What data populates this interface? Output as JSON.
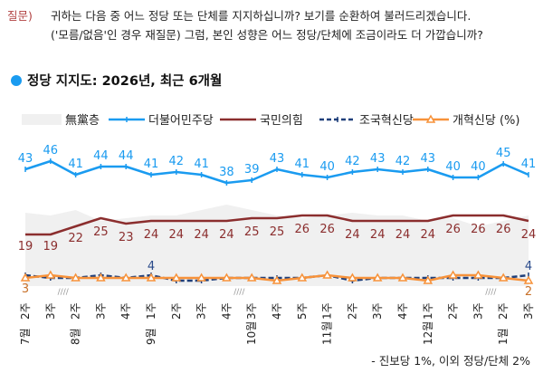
{
  "question": {
    "tag": "질문)",
    "line1": "귀하는 다음 중 어느 정당 또는 단체를 지지하십니까? 보기를 순환하여 불러드리겠습니다.",
    "line2": "('모름/없음'인 경우 재질문) 그럼, 본인 성향은 어느 정당/단체에 조금이라도 더 가깝습니까?"
  },
  "footnote": "- 진보당 1%, 이외 정당/단체 2%",
  "chart_data": {
    "type": "line",
    "title": "정당 지지도: 2026년, 최근 6개월",
    "unit": "%",
    "categories": [
      {
        "week": "2주",
        "month": "7월"
      },
      {
        "week": "3주",
        "month": ""
      },
      {
        "week": "2주",
        "month": "8월"
      },
      {
        "week": "3주",
        "month": ""
      },
      {
        "week": "4주",
        "month": ""
      },
      {
        "week": "1주",
        "month": "9월"
      },
      {
        "week": "2주",
        "month": ""
      },
      {
        "week": "3주",
        "month": ""
      },
      {
        "week": "4주",
        "month": ""
      },
      {
        "week": "3주",
        "month": "10월"
      },
      {
        "week": "4주",
        "month": ""
      },
      {
        "week": "5주",
        "month": ""
      },
      {
        "week": "1주",
        "month": "11월"
      },
      {
        "week": "2주",
        "month": ""
      },
      {
        "week": "3주",
        "month": ""
      },
      {
        "week": "4주",
        "month": ""
      },
      {
        "week": "1주",
        "month": "12월"
      },
      {
        "week": "2주",
        "month": ""
      },
      {
        "week": "3주",
        "month": ""
      },
      {
        "week": "2주",
        "month": "1월"
      },
      {
        "week": "3주",
        "month": ""
      }
    ],
    "axis_breaks_after_index": [
      1,
      8,
      18
    ],
    "axis_break_mark": "////",
    "ylim": [
      0,
      50
    ],
    "grid": false,
    "legend_position": "top",
    "series": [
      {
        "name": "無黨층",
        "type": "area",
        "color": "#f0f0f0",
        "values": [
          27,
          26,
          28,
          24,
          25,
          26,
          26,
          28,
          30,
          28,
          26,
          25,
          26,
          27,
          26,
          26,
          24,
          25,
          22,
          24,
          26
        ],
        "labels": "none"
      },
      {
        "name": "더불어민주당",
        "type": "line",
        "color": "#1a9bf0",
        "marker": "plus",
        "label_color": "#1a9bf0",
        "values": [
          43,
          46,
          41,
          44,
          44,
          41,
          42,
          41,
          38,
          39,
          43,
          41,
          40,
          42,
          43,
          42,
          43,
          40,
          40,
          45,
          41
        ],
        "labels": "all"
      },
      {
        "name": "국민의힘",
        "type": "line",
        "color": "#8b2e2e",
        "marker": "none",
        "label_color": "#8b2e2e",
        "values": [
          19,
          19,
          22,
          25,
          23,
          24,
          24,
          24,
          24,
          25,
          25,
          26,
          26,
          24,
          24,
          24,
          24,
          26,
          26,
          26,
          24
        ],
        "labels": "all"
      },
      {
        "name": "조국혁신당",
        "type": "dashed",
        "color": "#1f3f7a",
        "marker": "plus",
        "label_color": "#2a4a8a",
        "values": [
          4,
          3,
          3,
          4,
          3,
          4,
          2,
          2,
          3,
          3,
          3,
          3,
          4,
          2,
          3,
          3,
          3,
          3,
          3,
          3,
          4
        ],
        "labels": [
          5,
          20
        ]
      },
      {
        "name": "개혁신당",
        "type": "line",
        "color": "#f7923a",
        "marker": "triangle",
        "label_color": "#c8712a",
        "values": [
          3,
          4,
          3,
          3,
          3,
          3,
          3,
          3,
          3,
          3,
          2,
          3,
          4,
          3,
          3,
          3,
          2,
          4,
          4,
          3,
          2
        ],
        "labels": [
          0,
          20
        ]
      }
    ],
    "legend_suffix": "(%)"
  }
}
